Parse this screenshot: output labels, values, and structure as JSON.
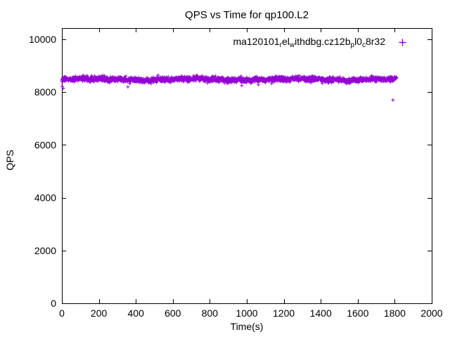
{
  "meta": {
    "app": "gnuplot-plot-window",
    "background_color": "#ffffff",
    "foreground_color": "#000000",
    "accent_color": "#9400D3"
  },
  "chart_data": {
    "type": "scatter",
    "title": "QPS vs Time for qp100.L2",
    "xlabel": "Time(s)",
    "ylabel": "QPS",
    "xlim": [
      0,
      2000
    ],
    "ylim": [
      0,
      10425
    ],
    "xticks": [
      0,
      200,
      400,
      600,
      800,
      1000,
      1200,
      1400,
      1600,
      1800,
      2000
    ],
    "yticks": [
      0,
      2000,
      4000,
      6000,
      8000,
      10000
    ],
    "grid": false,
    "legend_position": "top-right-inside",
    "series": [
      {
        "marker": "plus",
        "color": "#9400D3",
        "label_segments": [
          {
            "text": "ma120101"
          },
          {
            "text": "r",
            "subscript": true
          },
          {
            "text": "el"
          },
          {
            "text": "w",
            "subscript": true
          },
          {
            "text": "ithdbg.cz12b"
          },
          {
            "text": "p",
            "subscript": true
          },
          {
            "text": "l0"
          },
          {
            "text": "c",
            "subscript": true
          },
          {
            "text": "8r32"
          }
        ],
        "summary": "steady dense band of ~1800 samples, 1 per second, QPS ~8300-8620 (mean ~8480) from t=0 to t=1810",
        "band": {
          "t_start": 0,
          "t_end": 1810,
          "t_step": 1,
          "mean": 8480,
          "sigma": 52,
          "wobble": 26,
          "clip_min": 8270,
          "clip_max": 8640,
          "seed": 1234567
        },
        "outliers": [
          [
            1,
            8220
          ],
          [
            8,
            8140
          ],
          [
            357,
            8196
          ],
          [
            973,
            8249
          ],
          [
            1062,
            8276
          ],
          [
            1790,
            7700
          ]
        ]
      }
    ]
  }
}
